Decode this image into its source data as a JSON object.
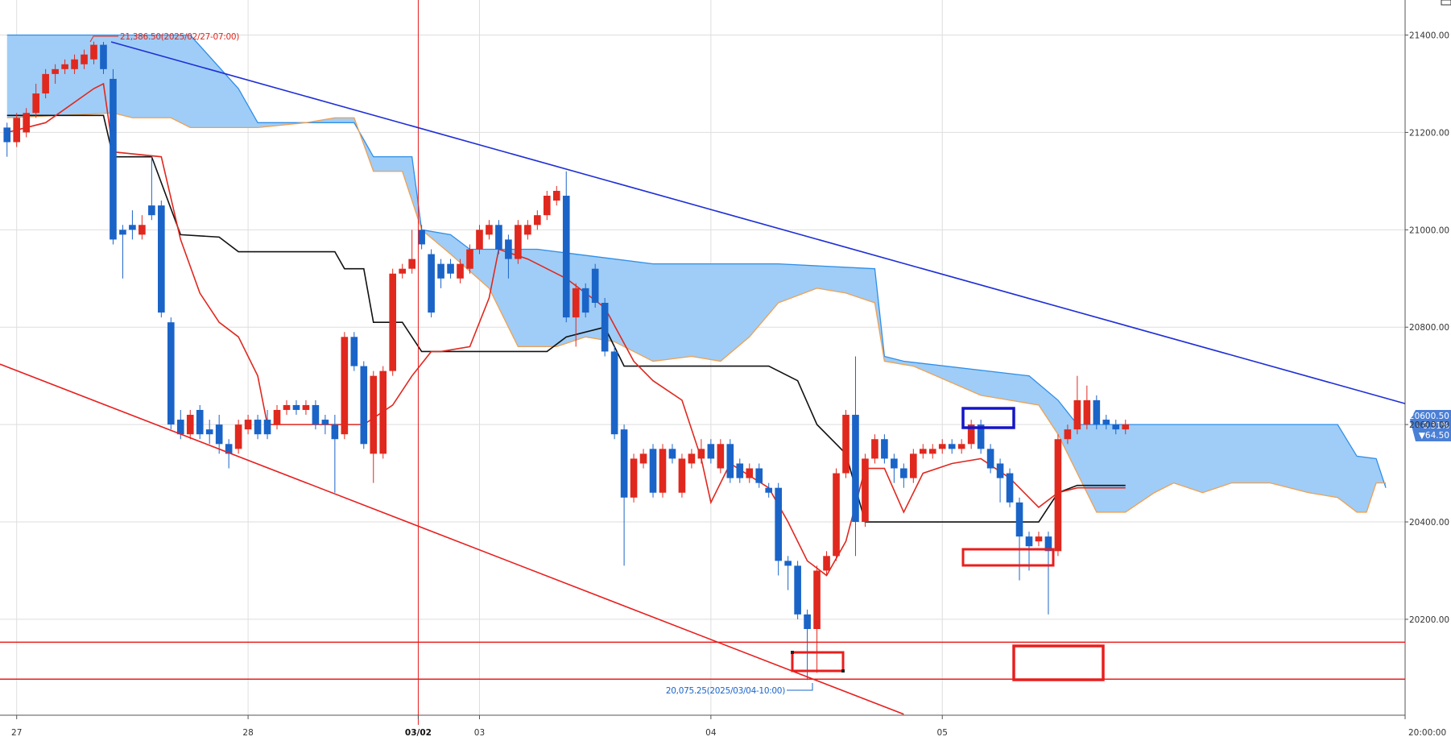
{
  "chart_data": {
    "type": "candlestick",
    "bull_color": "#e0281e",
    "bear_color": "#1a64c8",
    "grid": true,
    "xlim": [
      -0.73,
      145
    ],
    "ylim": [
      20003,
      21472
    ],
    "xticks": [
      {
        "value": 1,
        "label": "27"
      },
      {
        "value": 25,
        "label": "28"
      },
      {
        "value": 42.65,
        "label": "03/02",
        "highlight": true
      },
      {
        "value": 49,
        "label": "03"
      },
      {
        "value": 73,
        "label": "04"
      },
      {
        "value": 97,
        "label": "05"
      },
      {
        "value": 145,
        "label": "20:00:00"
      }
    ],
    "yticks": [
      {
        "value": 20200,
        "label": "20200.00"
      },
      {
        "value": 20400,
        "label": "20400.00"
      },
      {
        "value": 20600,
        "label": "20600.00"
      },
      {
        "value": 20800,
        "label": "20800.00"
      },
      {
        "value": 21000,
        "label": "21000.00"
      },
      {
        "value": 21200,
        "label": "21200.00"
      },
      {
        "value": 21400,
        "label": "21400.00"
      }
    ],
    "candles": {
      "open": [
        21210,
        21180,
        21200,
        21240,
        21280,
        21320,
        21330,
        21330,
        21340,
        21350,
        21380,
        21310,
        21000,
        21010,
        20990,
        21050,
        21050,
        20810,
        20610,
        20580,
        20630,
        20590,
        20600,
        20560,
        20550,
        20590,
        20610,
        20610,
        20600,
        20630,
        20640,
        20630,
        20640,
        20610,
        20600,
        20580,
        20780,
        20720,
        20540,
        20540,
        20710,
        20910,
        20920,
        21000,
        20950,
        20930,
        20930,
        20900,
        20920,
        20960,
        20990,
        21010,
        20980,
        20940,
        20990,
        21010,
        21030,
        21060,
        21070,
        20820,
        20880,
        20920,
        20850,
        20750,
        20590,
        20450,
        20520,
        20550,
        20460,
        20550,
        20460,
        20520,
        20530,
        20560,
        20510,
        20560,
        20520,
        20490,
        20510,
        20470,
        20470,
        20320,
        20310,
        20210,
        20180,
        20300,
        20330,
        20500,
        20620,
        20400,
        20530,
        20570,
        20530,
        20510,
        20490,
        20540,
        20540,
        20550,
        20560,
        20550,
        20560,
        20600,
        20550,
        20520,
        20500,
        20440,
        20370,
        20360,
        20370,
        20340,
        20570,
        20590,
        20600,
        20650,
        20610,
        20600,
        20590
      ],
      "high": [
        21220,
        21240,
        21250,
        21300,
        21330,
        21340,
        21350,
        21360,
        21370,
        21386.5,
        21386,
        21330,
        21010,
        21040,
        21030,
        21150,
        21060,
        20820,
        20630,
        20630,
        20640,
        20610,
        20620,
        20570,
        20610,
        20620,
        20620,
        20630,
        20640,
        20650,
        20650,
        20650,
        20650,
        20620,
        20620,
        20790,
        20790,
        20730,
        20710,
        20720,
        20920,
        20930,
        21000,
        21010,
        20960,
        20940,
        20940,
        20940,
        20970,
        21010,
        21020,
        21020,
        20990,
        21020,
        21020,
        21040,
        21080,
        21090,
        21120,
        20890,
        20890,
        20930,
        20860,
        20760,
        20600,
        20540,
        20550,
        20560,
        20560,
        20560,
        20540,
        20550,
        20570,
        20570,
        20570,
        20570,
        20530,
        20520,
        20520,
        20480,
        20480,
        20330,
        20320,
        20220,
        20310,
        20340,
        20510,
        20630,
        20740,
        20540,
        20580,
        20580,
        20540,
        20520,
        20550,
        20560,
        20560,
        20570,
        20570,
        20570,
        20610,
        20610,
        20560,
        20530,
        20510,
        20450,
        20380,
        20380,
        20380,
        20580,
        20600,
        20700,
        20680,
        20660,
        20620,
        20610,
        20610
      ],
      "low": [
        21150,
        21170,
        21190,
        21230,
        21270,
        21300,
        21320,
        21320,
        21330,
        21340,
        21320,
        20970,
        20900,
        20980,
        20980,
        21020,
        20820,
        20590,
        20570,
        20570,
        20570,
        20560,
        20540,
        20510,
        20540,
        20580,
        20570,
        20570,
        20590,
        20620,
        20620,
        20620,
        20590,
        20580,
        20460,
        20570,
        20710,
        20550,
        20480,
        20530,
        20700,
        20900,
        20910,
        20960,
        20820,
        20880,
        20900,
        20890,
        20910,
        20950,
        20980,
        20950,
        20900,
        20930,
        20980,
        21000,
        21020,
        21050,
        20810,
        20760,
        20820,
        20840,
        20740,
        20570,
        20310,
        20440,
        20510,
        20450,
        20450,
        20520,
        20450,
        20510,
        20520,
        20520,
        20500,
        20480,
        20480,
        20480,
        20470,
        20450,
        20290,
        20260,
        20200,
        20075.25,
        20090,
        20290,
        20320,
        20490,
        20330,
        20390,
        20520,
        20520,
        20480,
        20470,
        20480,
        20530,
        20530,
        20540,
        20540,
        20540,
        20550,
        20540,
        20500,
        20440,
        20430,
        20280,
        20300,
        20350,
        20210,
        20330,
        20560,
        20580,
        20590,
        20590,
        20590,
        20580,
        20580
      ],
      "close": [
        21180,
        21230,
        21240,
        21280,
        21320,
        21330,
        21340,
        21350,
        21360,
        21380,
        21330,
        20980,
        20990,
        21000,
        21010,
        21030,
        20830,
        20600,
        20580,
        20620,
        20580,
        20580,
        20560,
        20540,
        20600,
        20610,
        20580,
        20580,
        20630,
        20640,
        20630,
        20640,
        20600,
        20600,
        20570,
        20780,
        20720,
        20560,
        20700,
        20710,
        20910,
        20920,
        20940,
        20970,
        20830,
        20900,
        20910,
        20930,
        20960,
        21000,
        21010,
        20960,
        20940,
        21010,
        21010,
        21030,
        21070,
        21080,
        20820,
        20880,
        20830,
        20850,
        20750,
        20580,
        20450,
        20530,
        20540,
        20460,
        20550,
        20530,
        20530,
        20540,
        20550,
        20530,
        20560,
        20490,
        20490,
        20510,
        20480,
        20460,
        20320,
        20310,
        20210,
        20180,
        20300,
        20330,
        20500,
        20620,
        20400,
        20530,
        20570,
        20530,
        20510,
        20490,
        20540,
        20550,
        20550,
        20560,
        20550,
        20560,
        20600,
        20550,
        20510,
        20490,
        20440,
        20370,
        20350,
        20370,
        20340,
        20570,
        20590,
        20650,
        20650,
        20600,
        20600,
        20590,
        20600.5
      ]
    },
    "cloud_color": "#9fcdf7",
    "overlays": {
      "span_a": {
        "color": "#2f8ee8",
        "x": [
          0,
          19,
          24,
          26,
          29,
          36,
          38,
          42,
          43,
          46,
          48,
          55,
          59,
          67,
          80,
          90,
          91,
          93,
          106,
          109,
          111,
          131,
          138,
          140,
          142,
          143
        ],
        "values": [
          21400,
          21400,
          21290,
          21220,
          21220,
          21220,
          21150,
          21150,
          21000,
          20990,
          20960,
          20960,
          20950,
          20930,
          20930,
          20920,
          20740,
          20730,
          20700,
          20650,
          20600,
          20600,
          20600,
          20535,
          20530,
          20470
        ]
      },
      "span_b": {
        "color": "#f0a050",
        "x": [
          0,
          11,
          13,
          17,
          19,
          24,
          26,
          31,
          34,
          36,
          38,
          41,
          43,
          46,
          50,
          53,
          57,
          60,
          63,
          67,
          71,
          74,
          77,
          80,
          84,
          87,
          90,
          91,
          94,
          101,
          107,
          109,
          111,
          113,
          116,
          119,
          121,
          124,
          127,
          131,
          135,
          138,
          140,
          141,
          142,
          143
        ],
        "values": [
          21230,
          21240,
          21230,
          21230,
          21210,
          21210,
          21210,
          21220,
          21230,
          21230,
          21120,
          21120,
          21000,
          20950,
          20880,
          20760,
          20760,
          20780,
          20770,
          20730,
          20740,
          20730,
          20780,
          20850,
          20880,
          20870,
          20850,
          20730,
          20720,
          20660,
          20640,
          20580,
          20500,
          20420,
          20420,
          20460,
          20480,
          20460,
          20480,
          20480,
          20460,
          20450,
          20420,
          20420,
          20480,
          20480
        ]
      },
      "base_line": {
        "color": "#111111",
        "x": [
          0,
          10,
          11,
          15,
          18,
          22,
          24,
          34,
          35,
          37,
          38,
          41,
          43,
          56,
          58,
          62,
          64,
          79,
          82,
          84,
          87,
          89,
          107,
          109,
          111,
          116
        ],
        "values": [
          21235,
          21235,
          21150,
          21150,
          20990,
          20985,
          20955,
          20955,
          20920,
          20920,
          20810,
          20810,
          20750,
          20750,
          20780,
          20800,
          20720,
          20720,
          20690,
          20600,
          20540,
          20400,
          20400,
          20460,
          20475,
          20475
        ]
      },
      "conversion_line": {
        "color": "#e0281e",
        "x": [
          0,
          4,
          9,
          10,
          11,
          16,
          18,
          20,
          22,
          24,
          26,
          27,
          31,
          34,
          37,
          40,
          42,
          44,
          45,
          48,
          50,
          51,
          54,
          58,
          62,
          65,
          67,
          70,
          72,
          73,
          75,
          79,
          81,
          83,
          85,
          87,
          89,
          91,
          93,
          95,
          98,
          101,
          104,
          107,
          109,
          111,
          116
        ],
        "values": [
          21200,
          21220,
          21290,
          21300,
          21160,
          21150,
          20980,
          20870,
          20810,
          20780,
          20700,
          20600,
          20600,
          20600,
          20600,
          20640,
          20700,
          20750,
          20750,
          20760,
          20860,
          20960,
          20940,
          20900,
          20840,
          20730,
          20690,
          20650,
          20530,
          20440,
          20520,
          20470,
          20400,
          20320,
          20290,
          20360,
          20510,
          20510,
          20420,
          20500,
          20520,
          20530,
          20490,
          20430,
          20460,
          20470,
          20470
        ]
      }
    },
    "trendlines": [
      {
        "color": "#1f2fd6",
        "x": [
          10.8,
          145
        ],
        "values": [
          21386,
          20643
        ]
      },
      {
        "color": "#e81e1e",
        "x": [
          -0.73,
          93
        ],
        "values": [
          20724,
          20005
        ]
      }
    ],
    "levels": {
      "color": "#e81e1e",
      "values": [
        20153,
        20077
      ]
    },
    "annotations": {
      "high": "21,386.50(2025/02/27-07:00)",
      "low": "20,075.25(2025/03/04-10:00)"
    },
    "price_tag": {
      "price": "20600.50",
      "change_pct": "- 0.31%",
      "change": "▼64.50"
    }
  }
}
